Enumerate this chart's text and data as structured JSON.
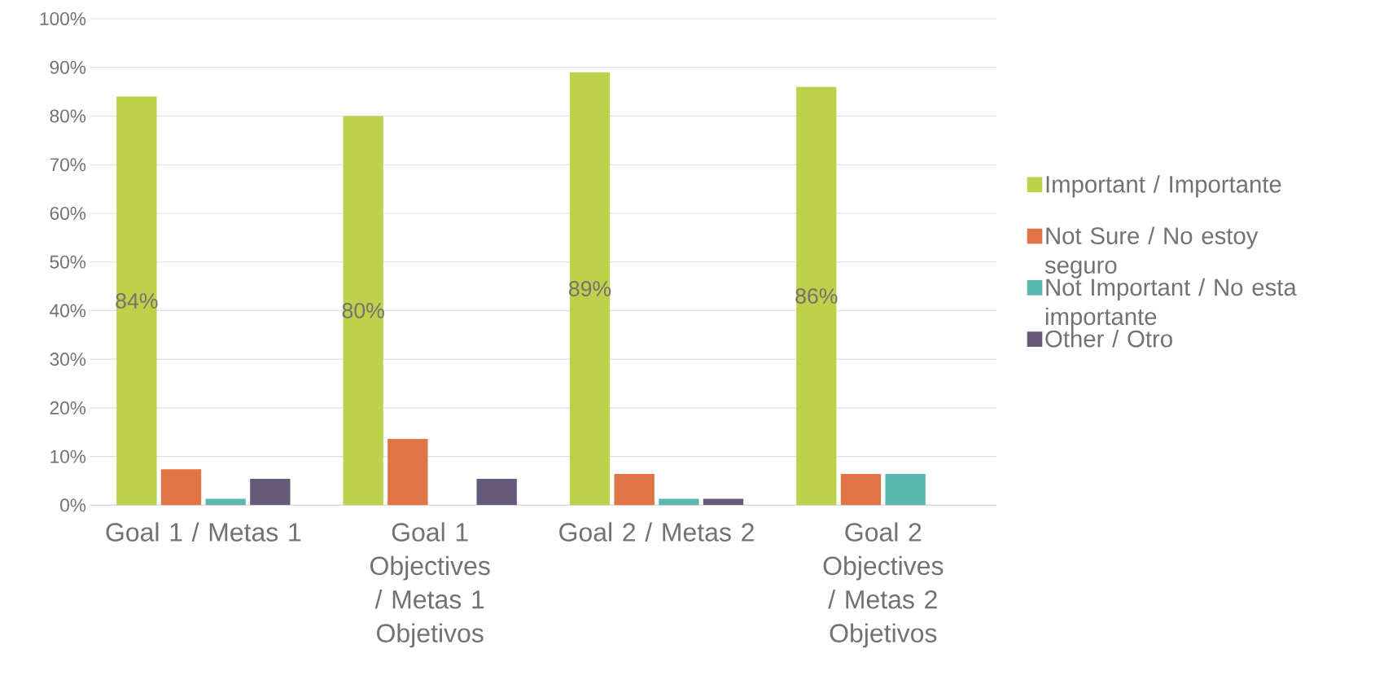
{
  "chart_data": {
    "type": "bar",
    "categories": [
      "Goal 1 / Metas 1",
      "Goal 1 Objectives / Metas 1 Objetivos",
      "Goal 2 / Metas 2",
      "Goal 2 Objectives / Metas 2 Objetivos"
    ],
    "series": [
      {
        "name": "Important / Importante",
        "color": "#bdd24a",
        "values": [
          84,
          80,
          89,
          86
        ],
        "value_labels": [
          "84%",
          "80%",
          "89%",
          "86%"
        ]
      },
      {
        "name": "Not Sure / No estoy seguro",
        "color": "#e07444",
        "values": [
          7.4,
          13.6,
          6.4,
          6.4
        ]
      },
      {
        "name": "Not Important / No esta importante",
        "color": "#5bb8b0",
        "values": [
          1.3,
          0,
          1.3,
          6.4
        ]
      },
      {
        "name": "Other / Otro",
        "color": "#655a7a",
        "values": [
          5.4,
          5.4,
          1.3,
          0
        ]
      }
    ],
    "ylim": [
      0,
      100
    ],
    "yticks": [
      {
        "value": 0,
        "label": "0%"
      },
      {
        "value": 10,
        "label": "10%"
      },
      {
        "value": 20,
        "label": "20%"
      },
      {
        "value": 30,
        "label": "30%"
      },
      {
        "value": 40,
        "label": "40%"
      },
      {
        "value": 50,
        "label": "50%"
      },
      {
        "value": 60,
        "label": "60%"
      },
      {
        "value": 70,
        "label": "70%"
      },
      {
        "value": 80,
        "label": "80%"
      },
      {
        "value": 90,
        "label": "90%"
      },
      {
        "value": 100,
        "label": "100%"
      }
    ],
    "grid": "y",
    "legend": "right"
  }
}
